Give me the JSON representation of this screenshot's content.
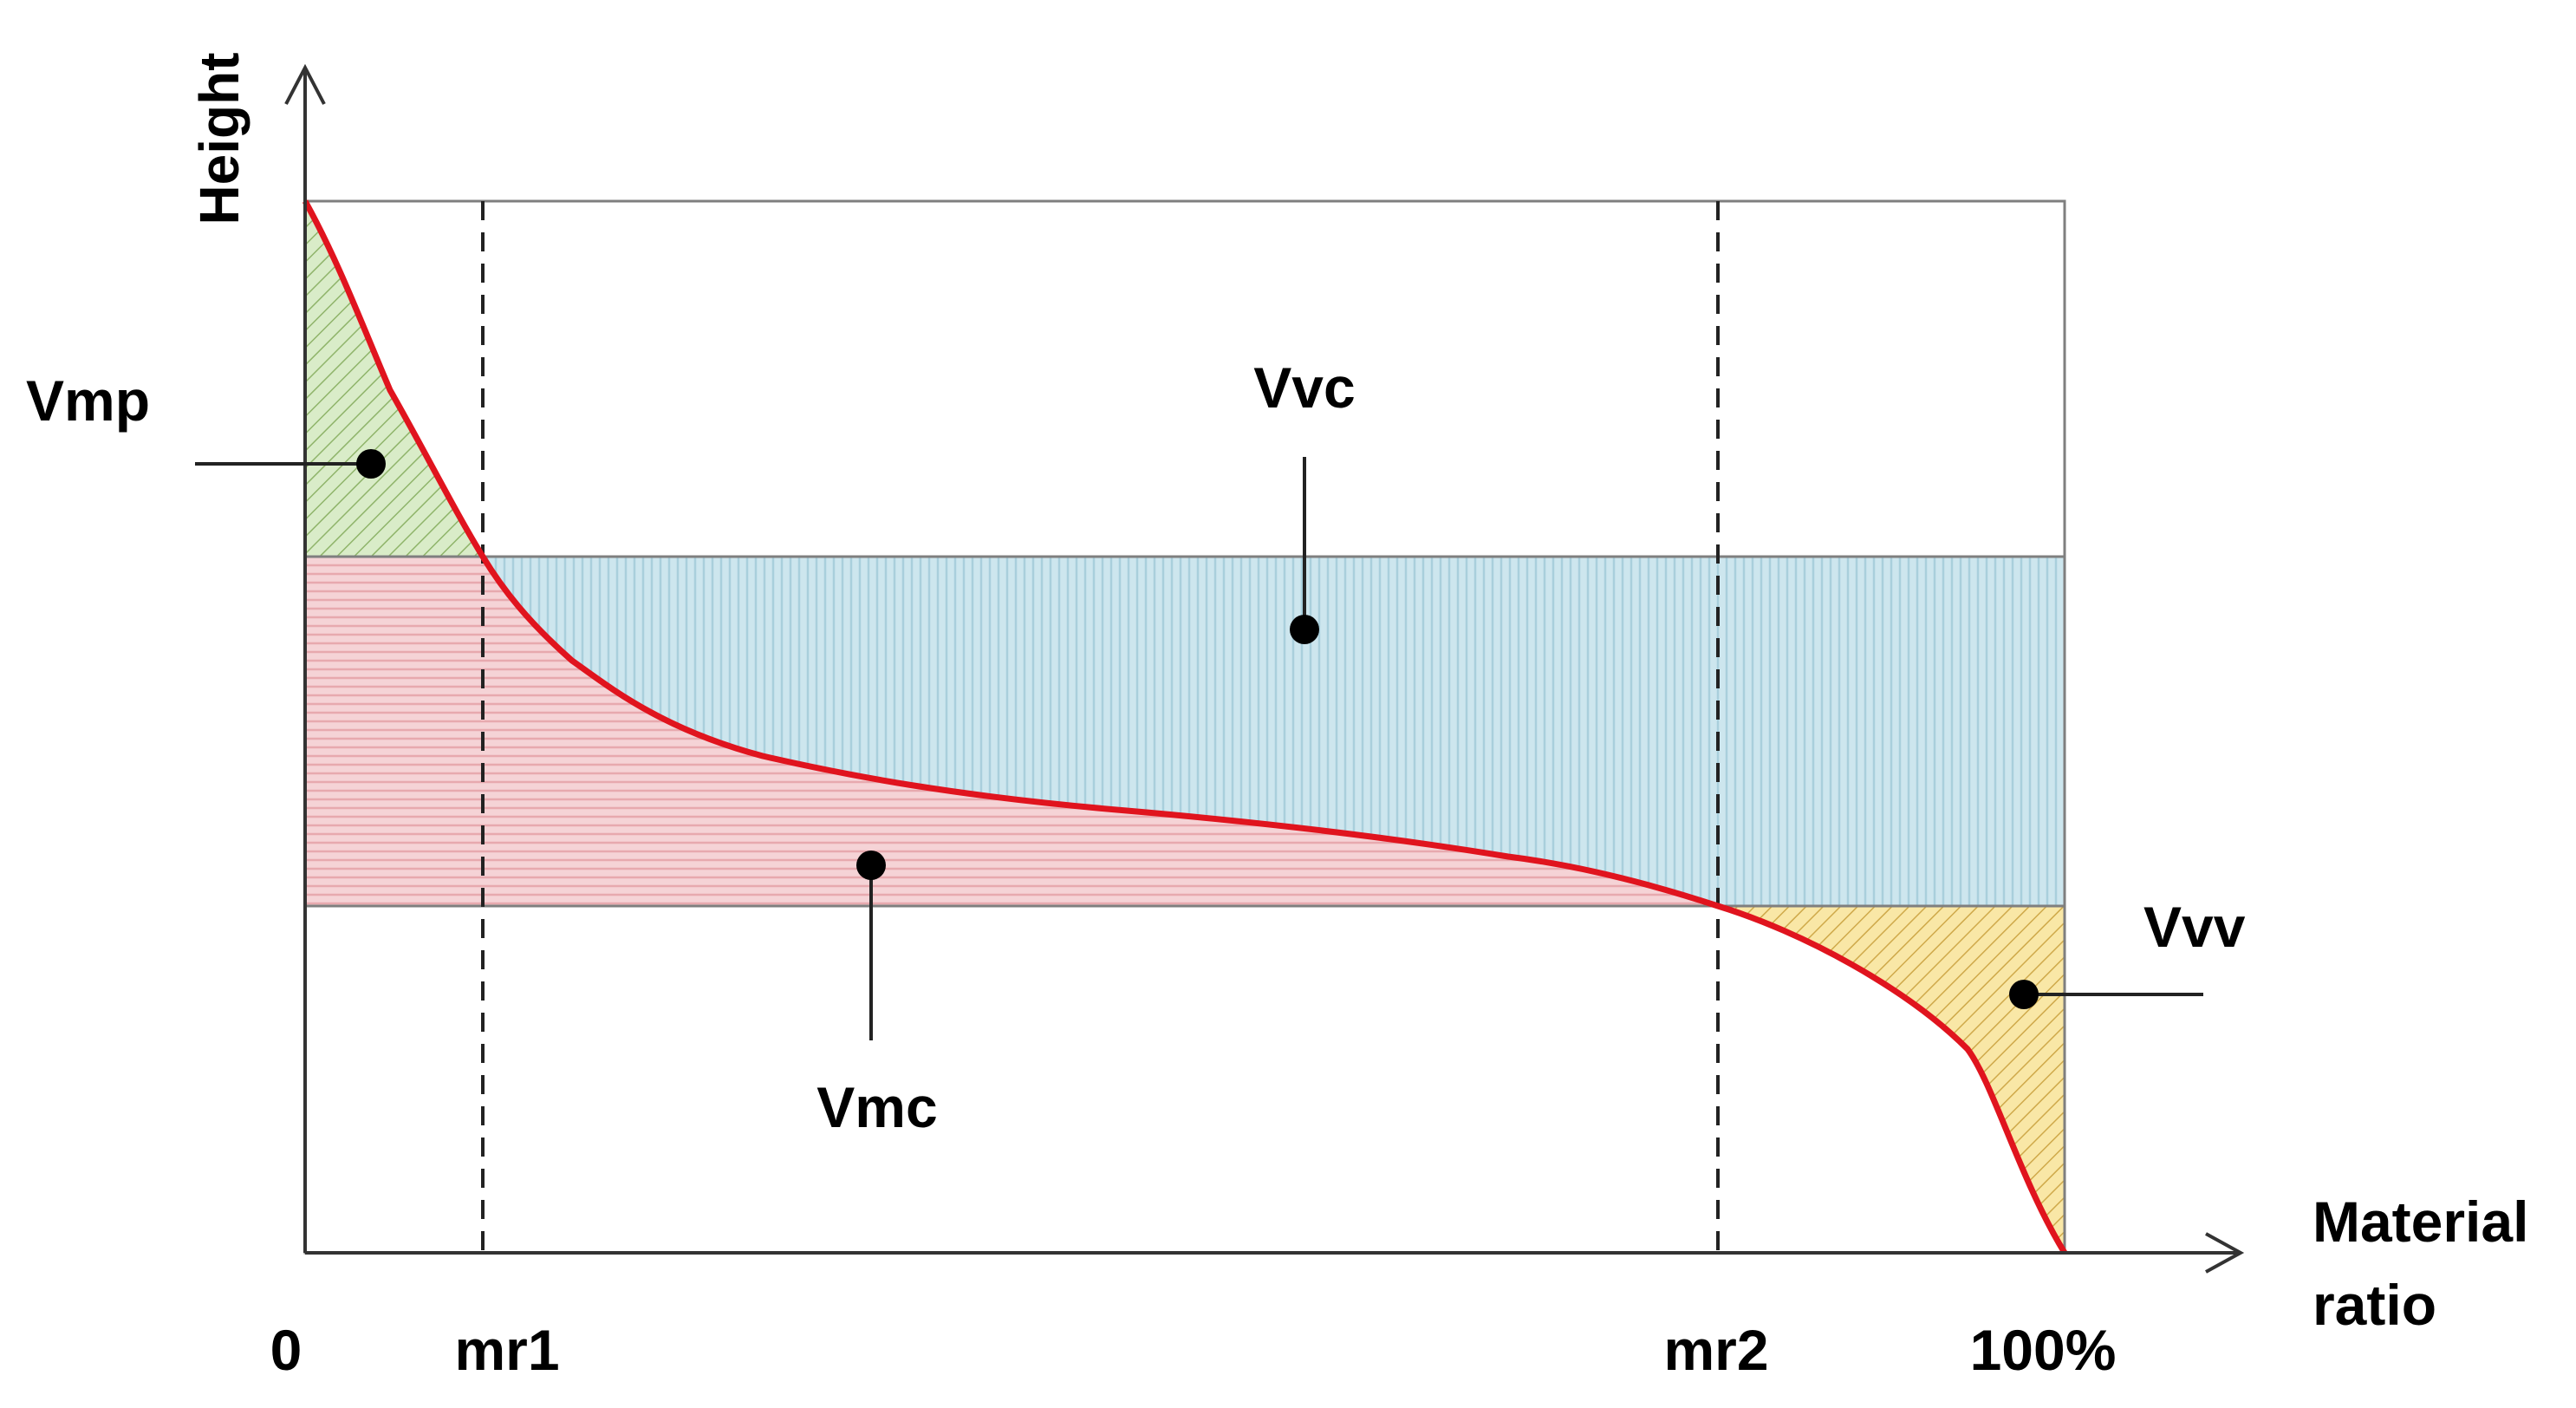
{
  "axes": {
    "y_label": "Height",
    "x_label_line1": "Material",
    "x_label_line2": "ratio"
  },
  "x_ticks": {
    "zero": "0",
    "mr1": "mr1",
    "mr2": "mr2",
    "full": "100%"
  },
  "regions": {
    "vmp": "Vmp",
    "vvc": "Vvc",
    "vmc": "Vmc",
    "vvv": "Vvv"
  },
  "colors": {
    "curve": "#e0141e",
    "vmp_fill": "#d9ecc8",
    "vmp_hatch": "#8fb46a",
    "vvc_fill": "#cde6ee",
    "vvc_stripe": "#a9cfdc",
    "vmc_fill": "#f5d3d6",
    "vmc_stripe": "#e7a9ae",
    "vvv_fill": "#f9e7a6",
    "vvv_hatch": "#cfa94a",
    "frame": "#7f7f7f",
    "axis": "#333333"
  }
}
